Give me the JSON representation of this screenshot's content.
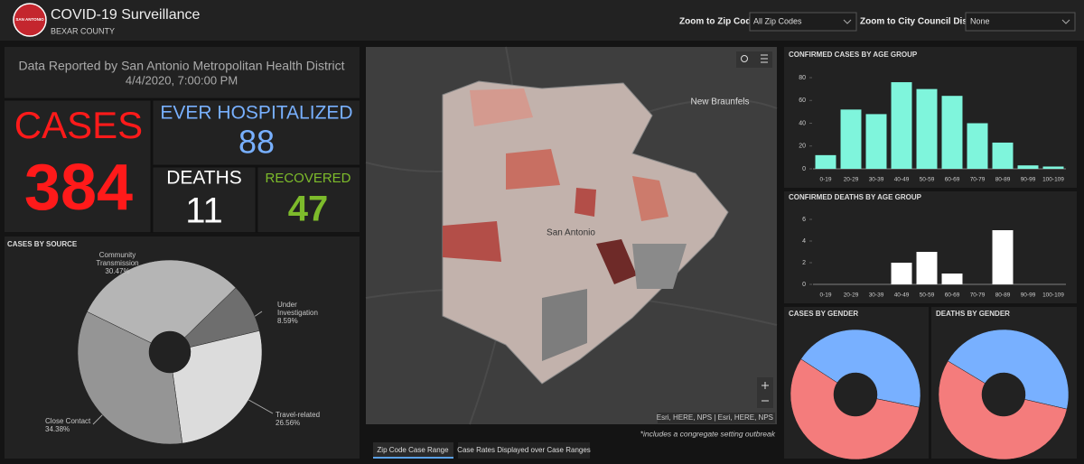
{
  "header": {
    "logo_text": "SAN ANTONIO",
    "title": "COVID-19 Surveillance",
    "subtitle": "BEXAR COUNTY",
    "zip_label": "Zoom to Zip Code",
    "zip_value": "All Zip Codes",
    "district_label": "Zoom to City Council District",
    "district_value": "None"
  },
  "report": {
    "source": "Data Reported by San Antonio Metropolitan Health District",
    "date": "4/4/2020, 7:00:00 PM"
  },
  "stats": {
    "cases": {
      "label": "CASES",
      "value": 384
    },
    "hospitalized": {
      "label": "EVER HOSPITALIZED",
      "value": 88
    },
    "deaths": {
      "label": "DEATHS",
      "value": 11
    },
    "recovered": {
      "label": "RECOVERED",
      "value": 47
    }
  },
  "cases_by_source": {
    "type": "donut",
    "title": "CASES BY SOURCE",
    "categories": [
      "Community Transmission",
      "Under Investigation",
      "Travel-related",
      "Close Contact"
    ],
    "values": [
      30.47,
      8.59,
      26.56,
      34.38
    ],
    "value_labels": [
      "30.47%",
      "8.59%",
      "26.56%",
      "34.38%"
    ],
    "colors": [
      "#b5b5b5",
      "#6e6e6e",
      "#dcdcdc",
      "#959595"
    ]
  },
  "map": {
    "labels": [
      "New Braunfels",
      "San Antonio"
    ],
    "attribution": "Esri, HERE, NPS | Esri, HERE, NPS",
    "note": "*includes a congregate setting outbreak",
    "tabs": [
      "Zip Code Case Range",
      "Case Rates Displayed over Case Ranges"
    ]
  },
  "cases_by_age": {
    "type": "bar",
    "title": "CONFIRMED CASES BY AGE GROUP",
    "categories": [
      "0-19",
      "20-29",
      "30-39",
      "40-49",
      "50-59",
      "60-69",
      "70-79",
      "80-89",
      "90-99",
      "100-109"
    ],
    "values": [
      12,
      52,
      48,
      76,
      70,
      64,
      40,
      23,
      3,
      2
    ],
    "color": "#7ff5dc",
    "ylim": [
      0,
      80
    ],
    "yticks": [
      0,
      20,
      40,
      60,
      80
    ]
  },
  "deaths_by_age": {
    "type": "bar",
    "title": "CONFIRMED DEATHS BY AGE GROUP",
    "categories": [
      "0-19",
      "20-29",
      "30-39",
      "40-49",
      "50-59",
      "60-69",
      "70-79",
      "80-89",
      "90-99",
      "100-109"
    ],
    "values": [
      0,
      0,
      0,
      2,
      3,
      1,
      0,
      5,
      0,
      0
    ],
    "color": "#ffffff",
    "ylim": [
      0,
      6
    ],
    "yticks": [
      0,
      2,
      4,
      6
    ]
  },
  "cases_by_gender": {
    "type": "donut",
    "title": "CASES BY GENDER",
    "values": [
      44,
      56
    ],
    "colors": [
      "#78b0ff",
      "#f47c7c"
    ]
  },
  "deaths_by_gender": {
    "type": "donut",
    "title": "DEATHS BY GENDER",
    "values": [
      45,
      55
    ],
    "colors": [
      "#78b0ff",
      "#f47c7c"
    ]
  }
}
